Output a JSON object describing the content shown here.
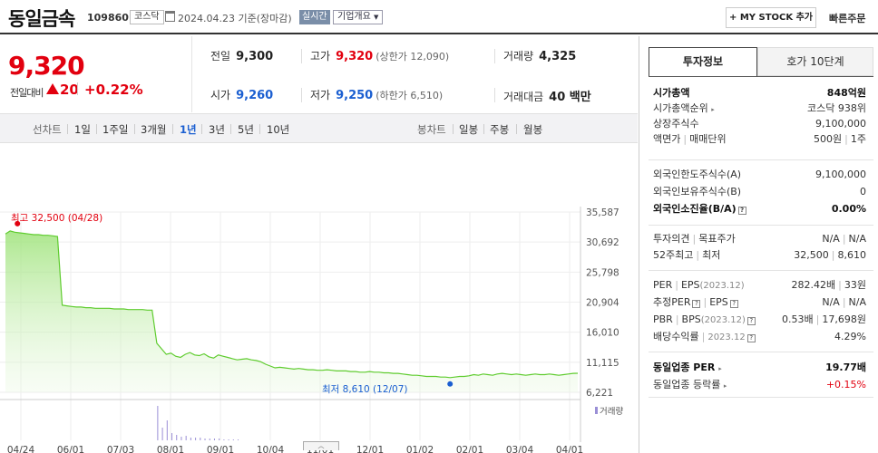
{
  "header": {
    "name": "동일금속",
    "code": "109860",
    "market": "코스닥",
    "date": "2024.04.23 기준(장마감)",
    "live": "실시간",
    "corp_info": "기업개요",
    "mystock": "+ MY STOCK 추가",
    "quick_order": "빠른주문"
  },
  "price": {
    "current": "9,320",
    "change_label": "전일대비",
    "change_amount": "20",
    "change_pct": "+0.22%"
  },
  "stats": {
    "prev_label": "전일",
    "prev": "9,300",
    "high_label": "고가",
    "high": "9,320",
    "upper_limit": "(상한가 12,090)",
    "volume_label": "거래량",
    "volume": "4,325",
    "open_label": "시가",
    "open": "9,260",
    "low_label": "저가",
    "low": "9,250",
    "lower_limit": "(하한가 6,510)",
    "amount_label": "거래대금",
    "amount": "40 백만"
  },
  "toolbar": {
    "line_label": "선차트",
    "periods": [
      "1일",
      "1주일",
      "3개월",
      "1년",
      "3년",
      "5년",
      "10년"
    ],
    "selected": "1년",
    "candle_label": "봉차트",
    "candles": [
      "일봉",
      "주봉",
      "월봉"
    ]
  },
  "chart_data": {
    "type": "area",
    "color": "#7ed957",
    "x_labels": [
      "04/24",
      "06/01",
      "07/03",
      "08/01",
      "09/01",
      "10/04",
      "11/01",
      "12/01",
      "01/02",
      "02/01",
      "03/04",
      "04/01"
    ],
    "y_ticks": [
      "35,587",
      "30,692",
      "25,798",
      "20,904",
      "16,010",
      "11,115",
      "6,221"
    ],
    "ylim": [
      6221,
      35587
    ],
    "high_annotation": "최고 32,500 (04/28)",
    "low_annotation": "최저 8,610 (12/07)",
    "volume_label": "거래량",
    "series": [
      32000,
      32500,
      32300,
      32200,
      32100,
      32000,
      31900,
      31900,
      31800,
      31800,
      31700,
      31600,
      20400,
      20300,
      20200,
      20100,
      20100,
      20000,
      20000,
      19900,
      19900,
      19900,
      19900,
      19800,
      19800,
      19800,
      19700,
      19700,
      19700,
      19700,
      19600,
      19600,
      14200,
      13300,
      12400,
      12600,
      12100,
      11900,
      12400,
      12700,
      12300,
      12200,
      12500,
      12000,
      11800,
      12300,
      12100,
      11900,
      11700,
      11500,
      11600,
      11700,
      11500,
      11400,
      11200,
      10800,
      10500,
      10200,
      10300,
      10200,
      10100,
      10000,
      10100,
      10000,
      9900,
      9900,
      9800,
      9800,
      9900,
      9800,
      9700,
      9700,
      9700,
      9600,
      9600,
      9500,
      9500,
      9600,
      9500,
      9500,
      9400,
      9400,
      9300,
      9300,
      9200,
      9100,
      9000,
      9000,
      8900,
      8800,
      8800,
      8800,
      8700,
      8700,
      8610,
      8700,
      8800,
      8800,
      8900,
      9100,
      9000,
      9200,
      9100,
      9000,
      9200,
      9300,
      9200,
      9100,
      9200,
      9100,
      9000,
      9100,
      9200,
      9100,
      9100,
      9200,
      9100,
      9000,
      9100,
      9200,
      9300,
      9320
    ]
  },
  "info": {
    "tab_invest": "투자정보",
    "tab_quote": "호가 10단계",
    "mktcap_label": "시가총액",
    "mktcap": "848억원",
    "mktcap_rank_label": "시가총액순위",
    "mktcap_rank": "코스닥 938위",
    "shares_label": "상장주식수",
    "shares": "9,100,000",
    "par_label": "액면가",
    "unit_label": "매매단위",
    "par": "500원",
    "unit": "1주",
    "foreign_limit_label": "외국인한도주식수(A)",
    "foreign_limit": "9,100,000",
    "foreign_hold_label": "외국인보유주식수(B)",
    "foreign_hold": "0",
    "foreign_ratio_label": "외국인소진율(B/A)",
    "foreign_ratio": "0.00%",
    "opinion_label": "투자의견",
    "target_label": "목표주가",
    "opinion": "N/A",
    "target": "N/A",
    "w52_high_label": "52주최고",
    "w52_low_label": "최저",
    "w52_high": "32,500",
    "w52_low": "8,610",
    "per_label": "PER",
    "eps_label": "EPS",
    "eps_period": "(2023.12)",
    "per": "282.42배",
    "eps": "33원",
    "est_per_label": "추정PER",
    "est_eps_label": "EPS",
    "est_per": "N/A",
    "est_eps": "N/A",
    "pbr_label": "PBR",
    "bps_label": "BPS",
    "bps_period": "(2023.12)",
    "pbr": "0.53배",
    "bps": "17,698원",
    "div_label": "배당수익률",
    "div_period": "2023.12",
    "div": "4.29%",
    "sector_per_label": "동일업종 PER",
    "sector_per": "19.77배",
    "sector_chg_label": "동일업종 등락률",
    "sector_chg": "+0.15%"
  }
}
